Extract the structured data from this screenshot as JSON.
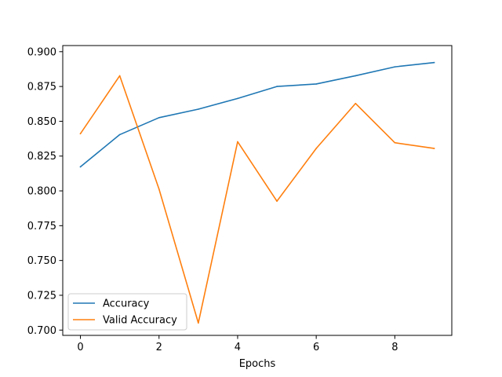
{
  "chart_data": {
    "type": "line",
    "xlabel": "Epochs",
    "ylabel": "",
    "title": "",
    "xlim": [
      -0.45,
      9.45
    ],
    "ylim": [
      0.6962,
      0.9044
    ],
    "xticks": [
      "0",
      "2",
      "4",
      "6",
      "8"
    ],
    "yticks": [
      "0.700",
      "0.725",
      "0.750",
      "0.775",
      "0.800",
      "0.825",
      "0.850",
      "0.875",
      "0.900"
    ],
    "x": [
      0,
      1,
      2,
      3,
      4,
      5,
      6,
      7,
      8,
      9
    ],
    "series": [
      {
        "name": "Accuracy",
        "color": "#1f77b4",
        "values": [
          0.8173,
          0.8404,
          0.8526,
          0.8587,
          0.8664,
          0.875,
          0.8768,
          0.8827,
          0.8891,
          0.8922
        ]
      },
      {
        "name": "Valid Accuracy",
        "color": "#ff7f0e",
        "values": [
          0.8411,
          0.8827,
          0.8013,
          0.7051,
          0.8353,
          0.7926,
          0.8305,
          0.8628,
          0.8346,
          0.8305
        ]
      }
    ],
    "grid": false,
    "legend": "lower-left"
  }
}
